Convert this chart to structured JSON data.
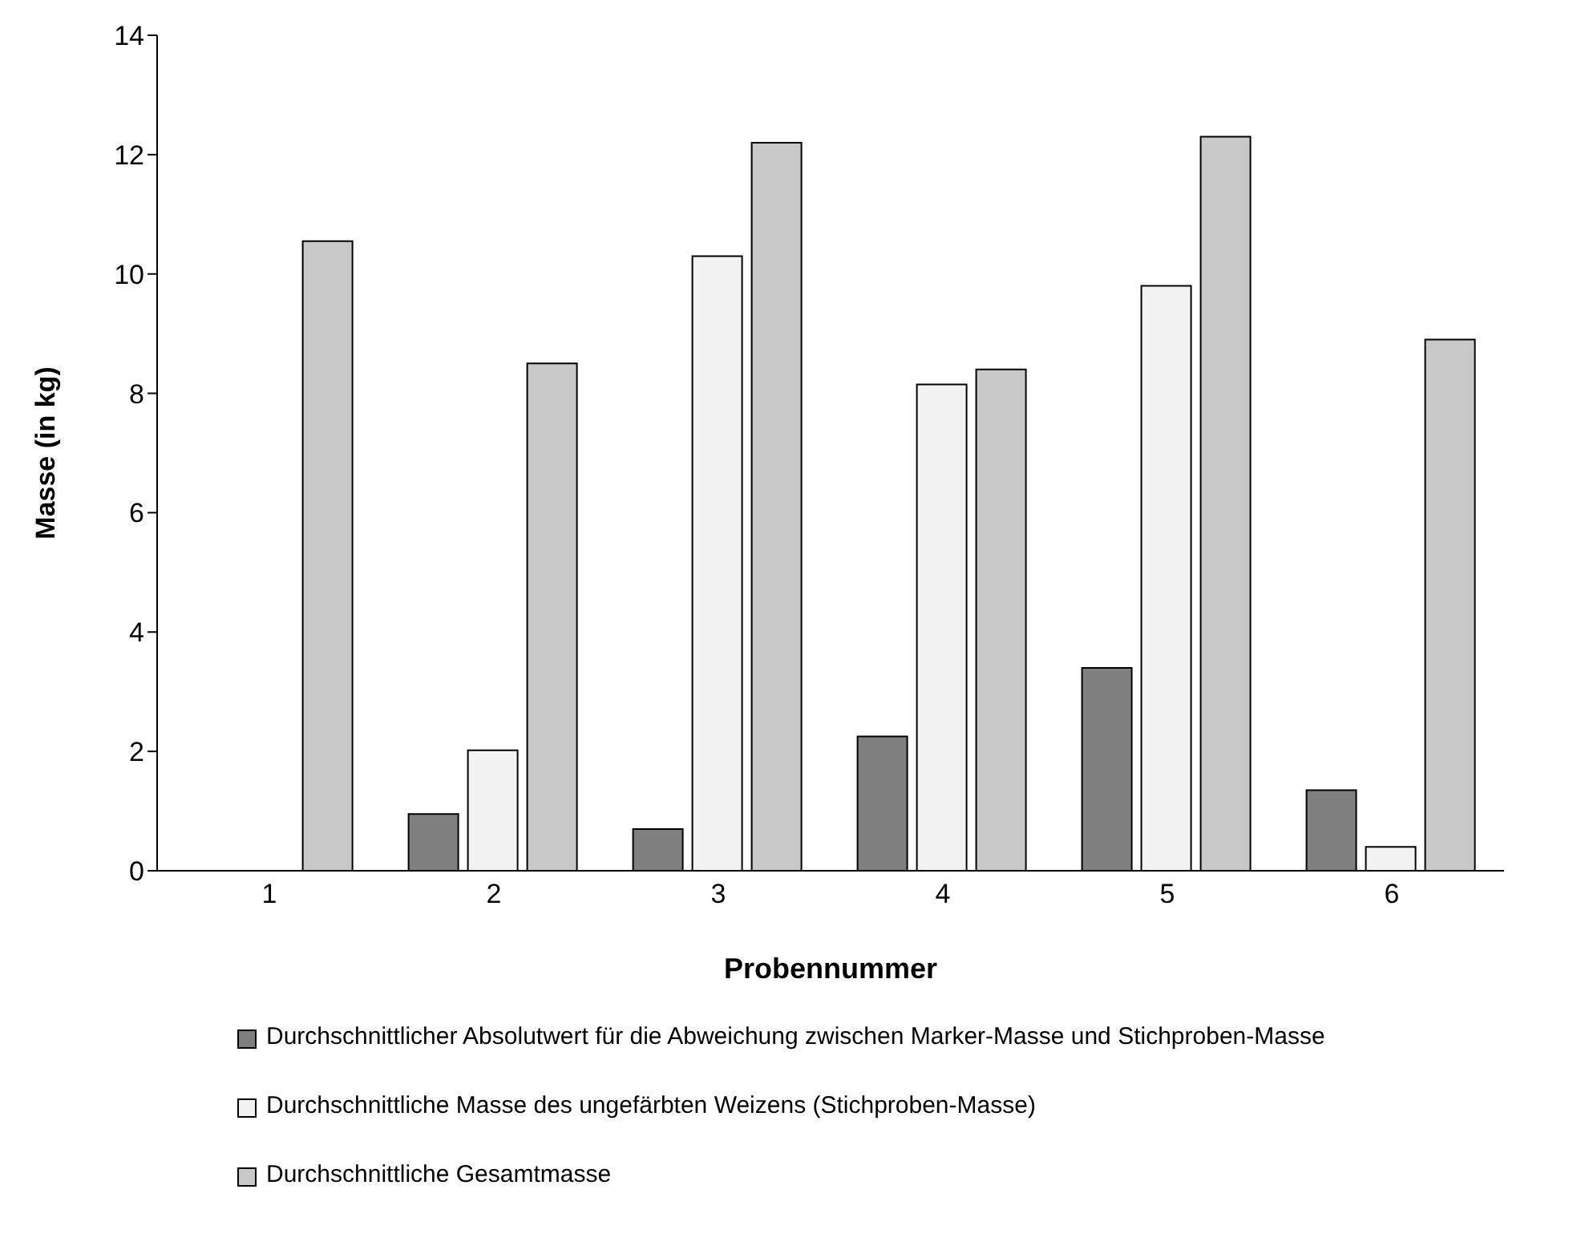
{
  "chart_data": {
    "type": "bar",
    "xlabel": "Probennummer",
    "ylabel": "Masse (in kg)",
    "categories": [
      "1",
      "2",
      "3",
      "4",
      "5",
      "6"
    ],
    "series": [
      {
        "name": "Durchschnittlicher Absolutwert für die Abweichung zwischen Marker-Masse und Stichproben-Masse",
        "color": "#7f7f7f",
        "values": [
          null,
          0.95,
          0.7,
          2.25,
          3.4,
          1.35
        ]
      },
      {
        "name": "Durchschnittliche Masse des ungefärbten Weizens (Stichproben-Masse)",
        "color": "#f2f2f2",
        "values": [
          null,
          2.02,
          10.3,
          8.15,
          9.8,
          0.4
        ]
      },
      {
        "name": "Durchschnittliche Gesamtmasse",
        "color": "#c8c8c8",
        "values": [
          10.55,
          8.5,
          12.2,
          8.4,
          12.3,
          8.9
        ]
      }
    ],
    "ylim": [
      0,
      14
    ],
    "yticks": [
      0,
      2,
      4,
      6,
      8,
      10,
      12,
      14
    ],
    "grid": false,
    "legend": "bottom"
  }
}
